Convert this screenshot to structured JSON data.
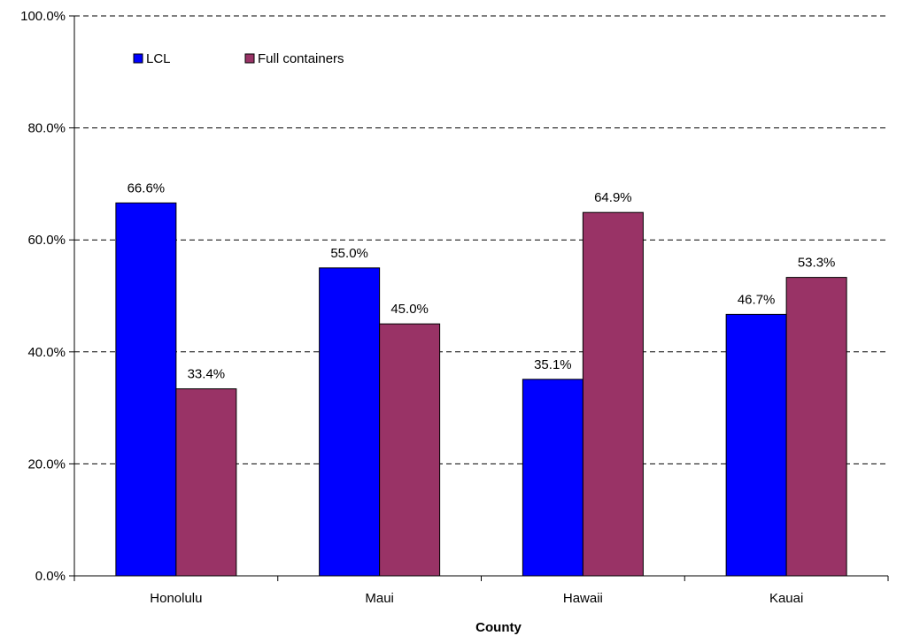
{
  "chart_data": {
    "type": "bar",
    "title": "",
    "xlabel": "County",
    "ylabel": "",
    "categories": [
      "Honolulu",
      "Maui",
      "Hawaii",
      "Kauai"
    ],
    "series": [
      {
        "name": "LCL",
        "color": "#0000ff",
        "values": [
          66.6,
          55.0,
          35.1,
          46.7
        ],
        "labels": [
          "66.6%",
          "55.0%",
          "35.1%",
          "46.7%"
        ]
      },
      {
        "name": "Full containers",
        "color": "#993366",
        "values": [
          33.4,
          45.0,
          64.9,
          53.3
        ],
        "labels": [
          "33.4%",
          "45.0%",
          "64.9%",
          "53.3%"
        ]
      }
    ],
    "ylim": [
      0,
      100
    ],
    "yticks": [
      0,
      20,
      40,
      60,
      80,
      100
    ],
    "ytick_labels": [
      "0.0%",
      "20.0%",
      "40.0%",
      "60.0%",
      "80.0%",
      "100.0%"
    ],
    "grid": "horizontal dashed",
    "legend_position": "top-left inside plot"
  }
}
